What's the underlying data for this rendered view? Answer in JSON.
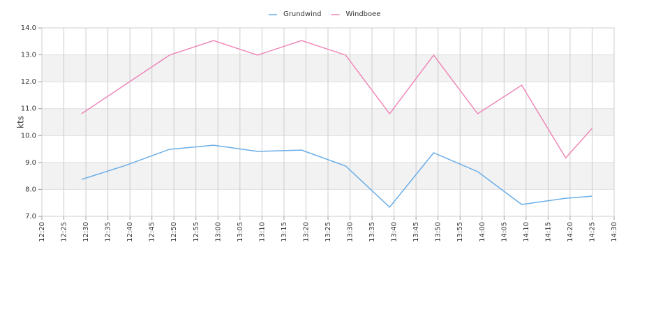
{
  "chart_data": {
    "type": "line",
    "y_label": "kts",
    "x": [
      "12:29",
      "12:39",
      "12:49",
      "12:59",
      "13:09",
      "13:19",
      "13:29",
      "13:39",
      "13:49",
      "13:59",
      "14:09",
      "14:19",
      "14:25"
    ],
    "series": [
      {
        "name": "Grundwind",
        "color": "#6aaee8",
        "values": [
          8.37,
          8.89,
          9.49,
          9.64,
          9.41,
          9.46,
          8.87,
          7.34,
          9.36,
          8.66,
          7.44,
          7.67,
          7.75
        ]
      },
      {
        "name": "Windboee",
        "color": "#ee88b8",
        "values": [
          10.81,
          11.9,
          12.99,
          13.53,
          12.99,
          13.53,
          12.99,
          10.81,
          12.99,
          10.81,
          11.87,
          9.17,
          10.27
        ]
      }
    ],
    "xlim": [
      "12:20",
      "14:30"
    ],
    "xticks": [
      "12:20",
      "12:25",
      "12:30",
      "12:35",
      "12:40",
      "12:45",
      "12:50",
      "12:55",
      "13:00",
      "13:05",
      "13:10",
      "13:15",
      "13:20",
      "13:25",
      "13:30",
      "13:35",
      "13:40",
      "13:45",
      "13:50",
      "13:55",
      "14:00",
      "14:05",
      "14:10",
      "14:15",
      "14:20",
      "14:25",
      "14:30"
    ],
    "ylim": [
      7,
      14
    ],
    "yticks": [
      {
        "value": 7,
        "label": "7.0"
      },
      {
        "value": 8,
        "label": "8.0"
      },
      {
        "value": 9,
        "label": "9.0"
      },
      {
        "value": 10,
        "label": "10.0"
      },
      {
        "value": 11,
        "label": "11.0"
      },
      {
        "value": 12,
        "label": "12.0"
      },
      {
        "value": 13,
        "label": "13.0"
      },
      {
        "value": 14,
        "label": "14.0"
      }
    ],
    "grid": true,
    "legend": "top"
  }
}
